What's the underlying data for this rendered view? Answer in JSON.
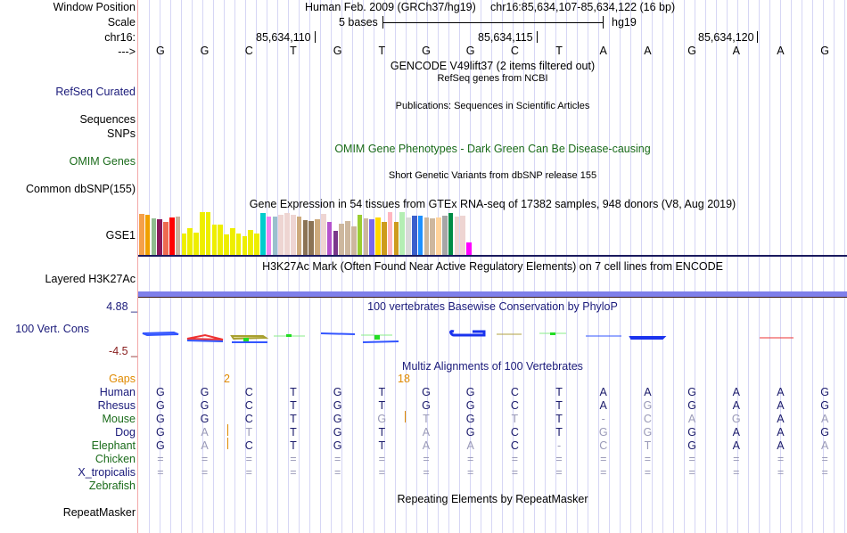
{
  "header": {
    "window_position_label": "Window Position",
    "scale_label": "Scale",
    "chrom_label": "chr16:",
    "strand_label": "--->",
    "assembly": "Human Feb. 2009 (GRCh37/hg19)",
    "position": "chr16:85,634,107-85,634,122 (16 bp)",
    "scale_text": "5 bases",
    "scale_db": "hg19",
    "ticks": [
      "85,634,110",
      "85,634,115",
      "85,634,120"
    ],
    "sequence": [
      "G",
      "G",
      "C",
      "T",
      "G",
      "T",
      "G",
      "G",
      "C",
      "T",
      "A",
      "A",
      "G",
      "A",
      "A",
      "G"
    ]
  },
  "tracks": {
    "gencode": {
      "title": "GENCODE V49lift37 (2 items filtered out)"
    },
    "refseq": {
      "label": "RefSeq Curated",
      "title": "RefSeq genes from NCBI"
    },
    "publications": {
      "label": "Sequences",
      "title": "Publications: Sequences in Scientific Articles"
    },
    "snps": {
      "label": "SNPs"
    },
    "omim": {
      "label": "OMIM Genes",
      "title": "OMIM Gene Phenotypes - Dark Green Can Be Disease-causing"
    },
    "dbsnp": {
      "label": "Common dbSNP(155)",
      "title": "Short Genetic Variants from dbSNP release 155"
    },
    "gtex": {
      "label": "GSE1",
      "title": "Gene Expression in 54 tissues from GTEx RNA-seq of 17382 samples, 948 donors (V8, Aug 2019)",
      "bars": [
        {
          "v": 0.95,
          "c": "#f5a04a"
        },
        {
          "v": 0.93,
          "c": "#f0a000"
        },
        {
          "v": 0.85,
          "c": "#8fbc8f"
        },
        {
          "v": 0.84,
          "c": "#8b1a5a"
        },
        {
          "v": 0.78,
          "c": "#ee6a50"
        },
        {
          "v": 0.87,
          "c": "#ff0000"
        },
        {
          "v": 0.89,
          "c": "#c9b19c"
        },
        {
          "v": 0.5,
          "c": "#eeee00"
        },
        {
          "v": 0.63,
          "c": "#eeee00"
        },
        {
          "v": 0.53,
          "c": "#eeee00"
        },
        {
          "v": 1.0,
          "c": "#eeee00"
        },
        {
          "v": 1.0,
          "c": "#eeee00"
        },
        {
          "v": 0.7,
          "c": "#eeee00"
        },
        {
          "v": 0.7,
          "c": "#eeee00"
        },
        {
          "v": 0.47,
          "c": "#eeee00"
        },
        {
          "v": 0.63,
          "c": "#eeee00"
        },
        {
          "v": 0.5,
          "c": "#eeee00"
        },
        {
          "v": 0.44,
          "c": "#eeee00"
        },
        {
          "v": 0.59,
          "c": "#eeee00"
        },
        {
          "v": 0.5,
          "c": "#eeee00"
        },
        {
          "v": 0.97,
          "c": "#00cdcd"
        },
        {
          "v": 0.89,
          "c": "#ee82ee"
        },
        {
          "v": 0.89,
          "c": "#9ac0cd"
        },
        {
          "v": 0.94,
          "c": "#eed5d2"
        },
        {
          "v": 0.98,
          "c": "#eed5d2"
        },
        {
          "v": 0.94,
          "c": "#eed5d2"
        },
        {
          "v": 0.89,
          "c": "#cdaa7d"
        },
        {
          "v": 0.81,
          "c": "#8b7355"
        },
        {
          "v": 0.8,
          "c": "#8b7355"
        },
        {
          "v": 0.84,
          "c": "#cdaa7d"
        },
        {
          "v": 0.96,
          "c": "#eed5d2"
        },
        {
          "v": 0.78,
          "c": "#b452cd"
        },
        {
          "v": 0.56,
          "c": "#7a378b"
        },
        {
          "v": 0.73,
          "c": "#cdb79e"
        },
        {
          "v": 0.79,
          "c": "#cdb79e"
        },
        {
          "v": 0.66,
          "c": "#cdb79e"
        },
        {
          "v": 0.93,
          "c": "#9acd32"
        },
        {
          "v": 0.86,
          "c": "#cdb79e"
        },
        {
          "v": 0.84,
          "c": "#7b68ee"
        },
        {
          "v": 0.87,
          "c": "#ffd700"
        },
        {
          "v": 0.77,
          "c": "#cd9b1d"
        },
        {
          "v": 1.0,
          "c": "#ffb6c1"
        },
        {
          "v": 0.77,
          "c": "#cd9b1d"
        },
        {
          "v": 1.0,
          "c": "#b4eeb4"
        },
        {
          "v": 0.87,
          "c": "#d9d9d9"
        },
        {
          "v": 0.92,
          "c": "#3a5fcd"
        },
        {
          "v": 0.92,
          "c": "#1e90ff"
        },
        {
          "v": 0.87,
          "c": "#cdb79e"
        },
        {
          "v": 0.85,
          "c": "#cdb79e"
        },
        {
          "v": 0.88,
          "c": "#ffd39b"
        },
        {
          "v": 0.92,
          "c": "#a6a6a6"
        },
        {
          "v": 0.97,
          "c": "#008b45"
        },
        {
          "v": 0.9,
          "c": "#eed5d2"
        },
        {
          "v": 0.91,
          "c": "#eed5d2"
        },
        {
          "v": 0.3,
          "c": "#ff00ff"
        }
      ]
    },
    "h3k27ac": {
      "label": "Layered H3K27Ac",
      "title": "H3K27Ac Mark (Often Found Near Active Regulatory Elements) on 7 cell lines from ENCODE"
    },
    "phylop": {
      "label": "100 Vert. Cons",
      "title": "100 vertebrates Basewise Conservation by PhyloP",
      "ymax": "4.88 _",
      "ymin": "-4.5 _"
    },
    "multiz": {
      "title": "Multiz Alignments of 100 Vertebrates",
      "gaps_label": "Gaps",
      "gap_counts": [
        {
          "pos": "after-2",
          "value": "2"
        },
        {
          "pos": "after-6",
          "value": "18"
        }
      ],
      "species": [
        {
          "name": "Human",
          "color": "navy",
          "seq": [
            "G",
            "G",
            "C",
            "T",
            "G",
            "T",
            "G",
            "G",
            "C",
            "T",
            "A",
            "A",
            "G",
            "A",
            "A",
            "G"
          ],
          "faint": []
        },
        {
          "name": "Rhesus",
          "color": "navy",
          "seq": [
            "G",
            "G",
            "C",
            "T",
            "G",
            "T",
            "G",
            "G",
            "C",
            "T",
            "A",
            "G",
            "G",
            "A",
            "A",
            "G"
          ],
          "faint": [
            11
          ]
        },
        {
          "name": "Mouse",
          "color": "green",
          "seq": [
            "G",
            "G",
            "C",
            "T",
            "G",
            "G",
            "T",
            "G",
            "T",
            "T",
            "-",
            "C",
            "A",
            "G",
            "A",
            "A"
          ],
          "faint": [
            5,
            6,
            8,
            10,
            11,
            12,
            13,
            15
          ]
        },
        {
          "name": "Dog",
          "color": "navy",
          "seq": [
            "G",
            "A",
            "T",
            "T",
            "G",
            "T",
            "A",
            "G",
            "C",
            "T",
            "G",
            "G",
            "G",
            "A",
            "A",
            "G"
          ],
          "faint": [
            1,
            2,
            6,
            10,
            11
          ]
        },
        {
          "name": "Elephant",
          "color": "green",
          "seq": [
            "G",
            "A",
            "C",
            "T",
            "G",
            "T",
            "A",
            "A",
            "C",
            "-",
            "C",
            "T",
            "G",
            "A",
            "A",
            "A"
          ],
          "faint": [
            1,
            6,
            7,
            9,
            10,
            11,
            15
          ]
        },
        {
          "name": "Chicken",
          "color": "green",
          "seq": [
            "=",
            "=",
            "=",
            "=",
            "=",
            "=",
            "=",
            "=",
            "=",
            "=",
            "=",
            "=",
            "=",
            "=",
            "=",
            "="
          ],
          "faint": [
            0,
            1,
            2,
            3,
            4,
            5,
            6,
            7,
            8,
            9,
            10,
            11,
            12,
            13,
            14,
            15
          ]
        },
        {
          "name": "X_tropicalis",
          "color": "navy",
          "seq": [
            "=",
            "=",
            "=",
            "=",
            "=",
            "=",
            "=",
            "=",
            "=",
            "=",
            "=",
            "=",
            "=",
            "=",
            "=",
            "="
          ],
          "faint": [
            0,
            1,
            2,
            3,
            4,
            5,
            6,
            7,
            8,
            9,
            10,
            11,
            12,
            13,
            14,
            15
          ]
        },
        {
          "name": "Zebrafish",
          "color": "green",
          "seq": [],
          "faint": []
        }
      ]
    },
    "repeatmasker": {
      "label": "RepeatMasker",
      "title": "Repeating Elements by RepeatMasker"
    }
  }
}
